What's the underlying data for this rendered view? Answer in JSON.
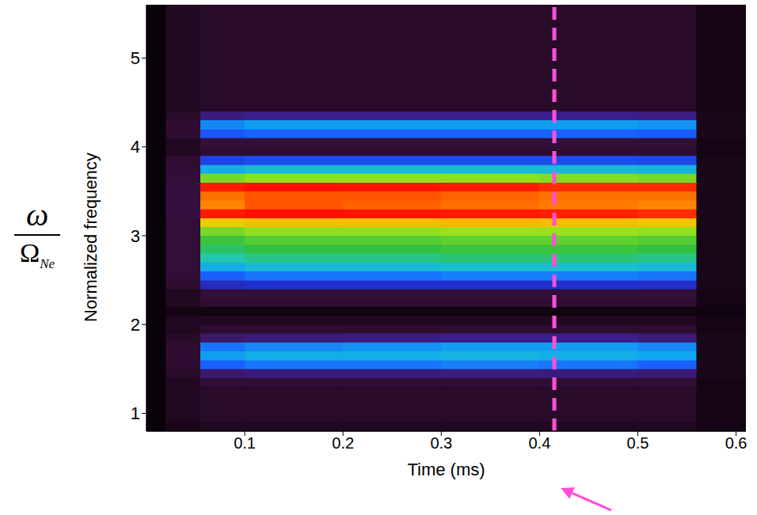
{
  "chart_data": {
    "type": "heatmap",
    "xlabel": "Time (ms)",
    "ylabel": "Normalized frequency",
    "ylabel_symbol": {
      "numerator": "ω",
      "denominator": "Ω",
      "subscript": "Ne"
    },
    "xlim": [
      0,
      0.61
    ],
    "xticks": [
      0.1,
      0.2,
      0.3,
      0.4,
      0.5,
      0.6
    ],
    "ylim": [
      0.8,
      5.6
    ],
    "yticks": [
      1,
      2,
      3,
      4,
      5
    ],
    "x_edges": [
      0,
      0.02,
      0.055,
      0.1,
      0.2,
      0.3,
      0.4,
      0.5,
      0.56,
      0.61
    ],
    "y_edges": [
      0.8,
      0.9,
      1,
      1.1,
      1.2,
      1.3,
      1.4,
      1.5,
      1.6,
      1.7,
      1.8,
      1.9,
      2,
      2.1,
      2.2,
      2.3,
      2.4,
      2.5,
      2.6,
      2.7,
      2.8,
      2.9,
      3,
      3.1,
      3.2,
      3.3,
      3.4,
      3.5,
      3.6,
      3.7,
      3.8,
      3.9,
      4,
      4.1,
      4.2,
      4.3,
      4.4,
      4.5,
      4.6,
      4.7,
      4.8,
      4.9,
      5,
      5.1,
      5.2,
      5.3,
      5.4,
      5.5,
      5.6
    ],
    "cells": [
      [
        0.02,
        0.05,
        0.06,
        0.06,
        0.06,
        0.06,
        0.06,
        0.06,
        0.04
      ],
      [
        0.02,
        0.06,
        0.07,
        0.07,
        0.07,
        0.07,
        0.07,
        0.07,
        0.04
      ],
      [
        0.02,
        0.06,
        0.07,
        0.07,
        0.07,
        0.07,
        0.07,
        0.07,
        0.04
      ],
      [
        0.02,
        0.06,
        0.07,
        0.07,
        0.07,
        0.07,
        0.07,
        0.07,
        0.04
      ],
      [
        0.02,
        0.06,
        0.07,
        0.07,
        0.07,
        0.07,
        0.07,
        0.07,
        0.04
      ],
      [
        0.02,
        0.06,
        0.09,
        0.09,
        0.09,
        0.09,
        0.09,
        0.09,
        0.04
      ],
      [
        0.02,
        0.07,
        0.18,
        0.2,
        0.2,
        0.2,
        0.2,
        0.19,
        0.05
      ],
      [
        0.02,
        0.08,
        0.4,
        0.42,
        0.42,
        0.43,
        0.42,
        0.4,
        0.05
      ],
      [
        0.02,
        0.08,
        0.46,
        0.48,
        0.48,
        0.49,
        0.48,
        0.47,
        0.05
      ],
      [
        0.02,
        0.08,
        0.42,
        0.44,
        0.45,
        0.46,
        0.46,
        0.44,
        0.05
      ],
      [
        0.02,
        0.07,
        0.18,
        0.2,
        0.21,
        0.22,
        0.22,
        0.2,
        0.05
      ],
      [
        0.02,
        0.06,
        0.08,
        0.08,
        0.08,
        0.08,
        0.08,
        0.08,
        0.04
      ],
      [
        0.02,
        0.06,
        0.06,
        0.06,
        0.06,
        0.06,
        0.06,
        0.06,
        0.04
      ],
      [
        0.02,
        0.04,
        0.03,
        0.03,
        0.03,
        0.03,
        0.03,
        0.03,
        0.03
      ],
      [
        0.02,
        0.06,
        0.08,
        0.08,
        0.08,
        0.08,
        0.08,
        0.08,
        0.04
      ],
      [
        0.02,
        0.06,
        0.1,
        0.1,
        0.1,
        0.1,
        0.1,
        0.1,
        0.04
      ],
      [
        0.02,
        0.08,
        0.28,
        0.3,
        0.3,
        0.3,
        0.3,
        0.29,
        0.05
      ],
      [
        0.02,
        0.09,
        0.4,
        0.42,
        0.42,
        0.43,
        0.43,
        0.42,
        0.05
      ],
      [
        0.02,
        0.1,
        0.48,
        0.5,
        0.5,
        0.51,
        0.51,
        0.5,
        0.05
      ],
      [
        0.02,
        0.1,
        0.54,
        0.56,
        0.56,
        0.57,
        0.57,
        0.56,
        0.05
      ],
      [
        0.02,
        0.1,
        0.58,
        0.6,
        0.6,
        0.61,
        0.61,
        0.6,
        0.05
      ],
      [
        0.02,
        0.1,
        0.61,
        0.63,
        0.63,
        0.64,
        0.64,
        0.63,
        0.05
      ],
      [
        0.02,
        0.1,
        0.66,
        0.68,
        0.68,
        0.69,
        0.69,
        0.68,
        0.05
      ],
      [
        0.02,
        0.1,
        0.78,
        0.8,
        0.8,
        0.81,
        0.8,
        0.79,
        0.05
      ],
      [
        0.02,
        0.11,
        0.95,
        0.97,
        0.96,
        0.95,
        0.94,
        0.93,
        0.05
      ],
      [
        0.02,
        0.11,
        0.86,
        0.9,
        0.89,
        0.88,
        0.87,
        0.86,
        0.05
      ],
      [
        0.02,
        0.11,
        0.88,
        0.9,
        0.9,
        0.89,
        0.88,
        0.88,
        0.05
      ],
      [
        0.02,
        0.11,
        0.95,
        0.97,
        0.96,
        0.95,
        0.93,
        0.93,
        0.05
      ],
      [
        0.02,
        0.1,
        0.66,
        0.68,
        0.68,
        0.68,
        0.67,
        0.66,
        0.05
      ],
      [
        0.02,
        0.09,
        0.48,
        0.5,
        0.5,
        0.5,
        0.5,
        0.49,
        0.05
      ],
      [
        0.02,
        0.08,
        0.34,
        0.36,
        0.36,
        0.36,
        0.36,
        0.35,
        0.05
      ],
      [
        0.02,
        0.06,
        0.08,
        0.08,
        0.08,
        0.08,
        0.08,
        0.08,
        0.04
      ],
      [
        0.02,
        0.06,
        0.1,
        0.1,
        0.1,
        0.1,
        0.1,
        0.1,
        0.04
      ],
      [
        0.02,
        0.08,
        0.38,
        0.4,
        0.4,
        0.4,
        0.4,
        0.39,
        0.05
      ],
      [
        0.02,
        0.08,
        0.44,
        0.46,
        0.46,
        0.46,
        0.46,
        0.45,
        0.05
      ],
      [
        0.02,
        0.07,
        0.2,
        0.22,
        0.22,
        0.22,
        0.22,
        0.21,
        0.05
      ],
      [
        0.02,
        0.06,
        0.07,
        0.07,
        0.07,
        0.07,
        0.07,
        0.07,
        0.04
      ],
      [
        0.02,
        0.06,
        0.07,
        0.07,
        0.07,
        0.07,
        0.07,
        0.07,
        0.04
      ],
      [
        0.02,
        0.06,
        0.07,
        0.07,
        0.07,
        0.07,
        0.07,
        0.07,
        0.04
      ],
      [
        0.02,
        0.06,
        0.07,
        0.07,
        0.07,
        0.07,
        0.07,
        0.07,
        0.04
      ],
      [
        0.02,
        0.06,
        0.07,
        0.07,
        0.07,
        0.07,
        0.07,
        0.07,
        0.04
      ],
      [
        0.02,
        0.06,
        0.07,
        0.07,
        0.07,
        0.07,
        0.07,
        0.07,
        0.04
      ],
      [
        0.02,
        0.06,
        0.07,
        0.07,
        0.07,
        0.07,
        0.07,
        0.07,
        0.04
      ],
      [
        0.02,
        0.06,
        0.07,
        0.07,
        0.07,
        0.07,
        0.07,
        0.07,
        0.04
      ],
      [
        0.02,
        0.06,
        0.07,
        0.07,
        0.07,
        0.07,
        0.07,
        0.07,
        0.04
      ],
      [
        0.02,
        0.06,
        0.07,
        0.07,
        0.07,
        0.07,
        0.07,
        0.07,
        0.04
      ],
      [
        0.02,
        0.06,
        0.07,
        0.07,
        0.07,
        0.07,
        0.07,
        0.07,
        0.04
      ],
      [
        0.02,
        0.06,
        0.07,
        0.07,
        0.07,
        0.07,
        0.07,
        0.07,
        0.04
      ]
    ],
    "cell_range": [
      0,
      1
    ],
    "reference_time": 0.415,
    "reference_color": "#ff4fd8"
  }
}
